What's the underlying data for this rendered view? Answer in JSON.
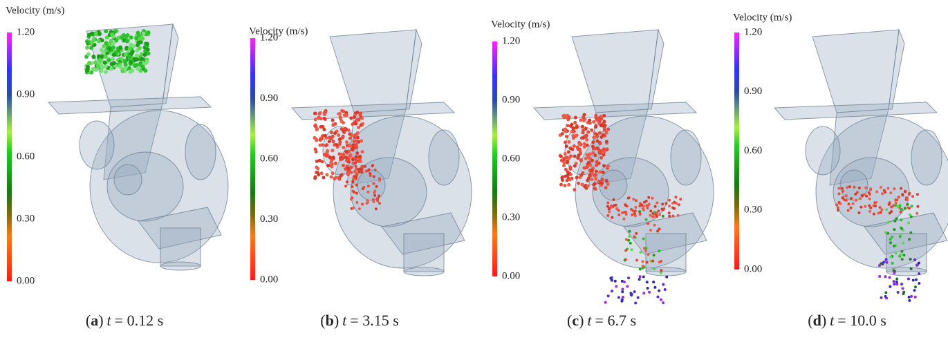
{
  "panels": [
    {
      "colorbar": {
        "title": "Velocity (m/s)",
        "ticks": [
          "1.20",
          "0.90",
          "0.60",
          "0.30",
          "0.00"
        ]
      },
      "caption": {
        "open": "(",
        "letter": "a",
        "close": ")",
        "variable": "t",
        "text": "= 0.12 s"
      }
    },
    {
      "colorbar": {
        "title": "Velocity (m/s)",
        "ticks": [
          "1.20",
          "0.90",
          "0.60",
          "0.30",
          "0.00"
        ]
      },
      "caption": {
        "open": "(",
        "letter": "b",
        "close": ")",
        "variable": "t",
        "text": "= 3.15 s"
      }
    },
    {
      "colorbar": {
        "title": "Velocity (m/s)",
        "ticks": [
          "1.20",
          "0.90",
          "0.60",
          "0.30",
          "0.00"
        ]
      },
      "caption": {
        "open": "(",
        "letter": "c",
        "close": ")",
        "variable": "t",
        "text": "= 6.7 s"
      }
    },
    {
      "colorbar": {
        "title": "Velocity (m/s)",
        "ticks": [
          "1.20",
          "0.90",
          "0.60",
          "0.30",
          "0.00"
        ]
      },
      "caption": {
        "open": "(",
        "letter": "d",
        "close": ")",
        "variable": "t",
        "text": "= 10.0 s"
      }
    }
  ]
}
